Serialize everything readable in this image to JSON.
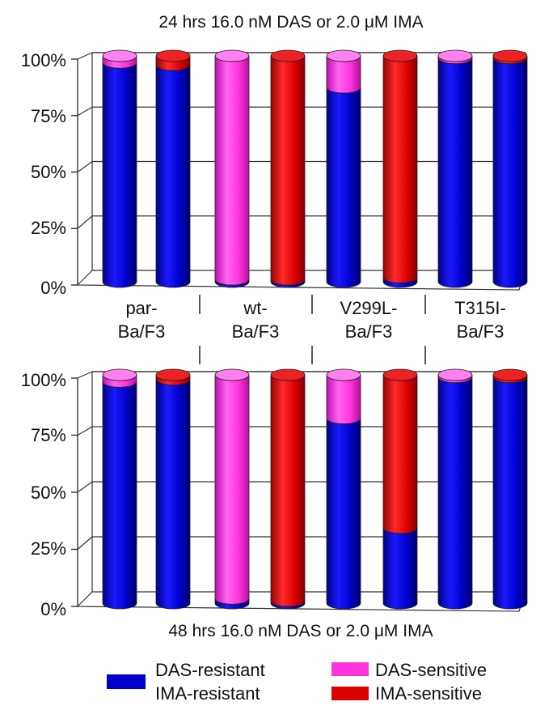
{
  "chart_data": [
    {
      "type": "bar",
      "stacked": true,
      "title": "24 hrs 16.0 nM DAS or 2.0 μM IMA",
      "categories": [
        "par-\nBa/F3",
        "wt-\nBa/F3",
        "V299L-\nBa/F3",
        "T315I-\nBa/F3"
      ],
      "yticks": [
        "0%",
        "25%",
        "50%",
        "75%",
        "100%"
      ],
      "ylim": [
        0,
        100
      ],
      "grid": true,
      "bars": [
        {
          "category": "par-\nBa/F3",
          "drug": "DAS",
          "resistant": 97,
          "sensitive": 3
        },
        {
          "category": "par-\nBa/F3",
          "drug": "IMA",
          "resistant": 96,
          "sensitive": 4
        },
        {
          "category": "wt-\nBa/F3",
          "drug": "DAS",
          "resistant": 1,
          "sensitive": 99
        },
        {
          "category": "wt-\nBa/F3",
          "drug": "IMA",
          "resistant": 1,
          "sensitive": 99
        },
        {
          "category": "V299L-\nBa/F3",
          "drug": "DAS",
          "resistant": 86,
          "sensitive": 14
        },
        {
          "category": "V299L-\nBa/F3",
          "drug": "IMA",
          "resistant": 2,
          "sensitive": 98
        },
        {
          "category": "T315I-\nBa/F3",
          "drug": "DAS",
          "resistant": 99,
          "sensitive": 1
        },
        {
          "category": "T315I-\nBa/F3",
          "drug": "IMA",
          "resistant": 99,
          "sensitive": 1
        }
      ]
    },
    {
      "type": "bar",
      "stacked": true,
      "title": "48 hrs 16.0 nM DAS or 2.0 μM IMA",
      "categories": [
        "par-\nBa/F3",
        "wt-\nBa/F3",
        "V299L-\nBa/F3",
        "T315I-\nBa/F3"
      ],
      "yticks": [
        "0%",
        "25%",
        "50%",
        "75%",
        "100%"
      ],
      "ylim": [
        0,
        100
      ],
      "grid": true,
      "bars": [
        {
          "category": "par-\nBa/F3",
          "drug": "DAS",
          "resistant": 97,
          "sensitive": 3
        },
        {
          "category": "par-\nBa/F3",
          "drug": "IMA",
          "resistant": 98,
          "sensitive": 2
        },
        {
          "category": "wt-\nBa/F3",
          "drug": "DAS",
          "resistant": 2,
          "sensitive": 98
        },
        {
          "category": "wt-\nBa/F3",
          "drug": "IMA",
          "resistant": 1,
          "sensitive": 99
        },
        {
          "category": "V299L-\nBa/F3",
          "drug": "DAS",
          "resistant": 81,
          "sensitive": 19
        },
        {
          "category": "V299L-\nBa/F3",
          "drug": "IMA",
          "resistant": 33,
          "sensitive": 67
        },
        {
          "category": "T315I-\nBa/F3",
          "drug": "DAS",
          "resistant": 99,
          "sensitive": 1
        },
        {
          "category": "T315I-\nBa/F3",
          "drug": "IMA",
          "resistant": 99,
          "sensitive": 1
        }
      ]
    }
  ],
  "legend": {
    "placement": "bottom",
    "items": [
      {
        "lines": [
          "DAS-resistant",
          "IMA-resistant"
        ],
        "color": "#0000cc"
      },
      {
        "lines": [
          "DAS-sensitive"
        ],
        "color": "#ff33dd"
      },
      {
        "lines": [
          "IMA-sensitive"
        ],
        "color": "#dd0000"
      }
    ]
  },
  "colors": {
    "resistant": "#0000cc",
    "das_sensitive": "#ff33dd",
    "ima_sensitive": "#dd0000"
  }
}
